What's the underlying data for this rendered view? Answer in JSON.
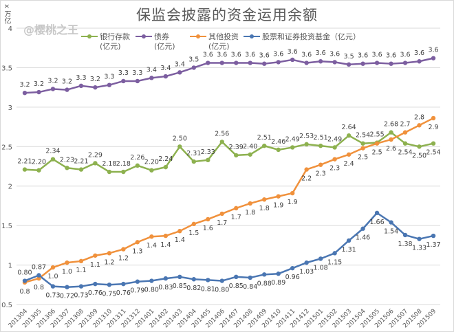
{
  "chart_data": {
    "type": "line",
    "title": "保监会披露的资金运用余额",
    "ylabel": "x 万亿",
    "watermark": "@樱桃之王",
    "ylim": [
      0.5,
      4
    ],
    "yticks": [
      "0.5",
      "1",
      "1.5",
      "2",
      "2.5",
      "3",
      "3.5",
      "4"
    ],
    "grid": true,
    "legend_position": "top",
    "categories": [
      "201304",
      "201305",
      "201306",
      "201307",
      "201308",
      "201309",
      "201310",
      "201311",
      "201312",
      "201401",
      "201402",
      "201403",
      "201404",
      "201405",
      "201406",
      "201407",
      "201408",
      "201409",
      "201410",
      "201411",
      "201412",
      "201501",
      "201502",
      "201503",
      "201504",
      "201505",
      "201506",
      "201507",
      "201508",
      "201509"
    ],
    "series": [
      {
        "name": "银行存款(亿元)",
        "color": "#8db14f",
        "values": [
          2.21,
          2.2,
          2.34,
          2.23,
          2.21,
          2.29,
          2.18,
          2.18,
          2.26,
          2.2,
          2.24,
          2.5,
          2.31,
          2.33,
          2.56,
          2.39,
          2.4,
          2.51,
          2.46,
          2.49,
          2.53,
          2.51,
          2.49,
          2.64,
          2.54,
          2.55,
          2.68,
          2.54,
          2.5,
          2.54
        ],
        "labels": [
          "2.21",
          "2.20",
          "2.34",
          "2.23",
          "2.21",
          "2.29",
          "2.18",
          "2.18",
          "2.26",
          "2.20",
          "2.24",
          "2.50",
          "2.31",
          "2.33",
          "2.56",
          "2.39",
          "2.40",
          "2.51",
          "2.46",
          "2.49",
          "2.53",
          "2.51",
          "2.49",
          "2.64",
          "2.54",
          "2.55",
          "2.68",
          "2.54",
          "2.50",
          "2.54"
        ]
      },
      {
        "name": "债券(亿元)",
        "color": "#7c5ea0",
        "values": [
          3.18,
          3.19,
          3.23,
          3.22,
          3.27,
          3.25,
          3.28,
          3.33,
          3.33,
          3.37,
          3.39,
          3.44,
          3.5,
          3.56,
          3.56,
          3.56,
          3.56,
          3.55,
          3.57,
          3.6,
          3.56,
          3.58,
          3.57,
          3.54,
          3.55,
          3.56,
          3.55,
          3.56,
          3.58,
          3.62
        ],
        "labels": [
          "3.2",
          "3.2",
          "3.2",
          "3.2",
          "3.3",
          "3.2",
          "3.3",
          "3.3",
          "3.3",
          "3.4",
          "3.4",
          "3.4",
          "3.5",
          "3.6",
          "3.6",
          "3.6",
          "3.6",
          "3.6",
          "3.6",
          "3.6",
          "3.6",
          "3.6",
          "3.6",
          "3.5",
          "3.6",
          "3.6",
          "3.6",
          "3.6",
          "3.6",
          "3.6"
        ]
      },
      {
        "name": "其他投资(亿元)",
        "color": "#f0913c",
        "values": [
          0.78,
          0.83,
          0.97,
          1.03,
          1.05,
          1.12,
          1.15,
          1.2,
          1.29,
          1.36,
          1.37,
          1.43,
          1.52,
          1.58,
          1.65,
          1.72,
          1.78,
          1.83,
          1.87,
          1.91,
          2.21,
          2.27,
          2.34,
          2.4,
          2.48,
          2.54,
          2.59,
          2.68,
          2.77,
          2.86
        ],
        "labels": [
          "0.8",
          "0.8",
          "1.0",
          "1.0",
          "1.1",
          "1.1",
          "1.2",
          "1.2",
          "1.3",
          "1.4",
          "1.4",
          "1.4",
          "1.5",
          "1.6",
          "1.7",
          "1.7",
          "1.8",
          "1.8",
          "1.9",
          "1.9",
          "2.2",
          "2.3",
          "2.3",
          "2.4",
          "2.5",
          "2.5",
          "2.6",
          "2.7",
          "2.8",
          "2.9"
        ]
      },
      {
        "name": "股票和证券投资基金（亿元）",
        "color": "#4a76b2",
        "values": [
          0.8,
          0.87,
          0.73,
          0.72,
          0.73,
          0.76,
          0.75,
          0.76,
          0.79,
          0.8,
          0.83,
          0.85,
          0.82,
          0.81,
          0.8,
          0.85,
          0.84,
          0.88,
          0.89,
          0.96,
          1.03,
          1.08,
          1.15,
          1.31,
          1.46,
          1.66,
          1.54,
          1.38,
          1.33,
          1.37
        ],
        "labels": [
          "0.80",
          "0.87",
          "0.73",
          "0.72",
          "0.73",
          "0.76",
          "0.75",
          "0.76",
          "0.79",
          "0.80",
          "0.83",
          "0.85",
          "0.82",
          "0.81",
          "0.80",
          "0.85",
          "0.84",
          "0.88",
          "0.89",
          "0.96",
          "1.03",
          "1.08",
          "1.15",
          "1.31",
          "1.46",
          "1.66",
          "1.54",
          "1.38",
          "1.33",
          "1.37"
        ]
      }
    ]
  }
}
